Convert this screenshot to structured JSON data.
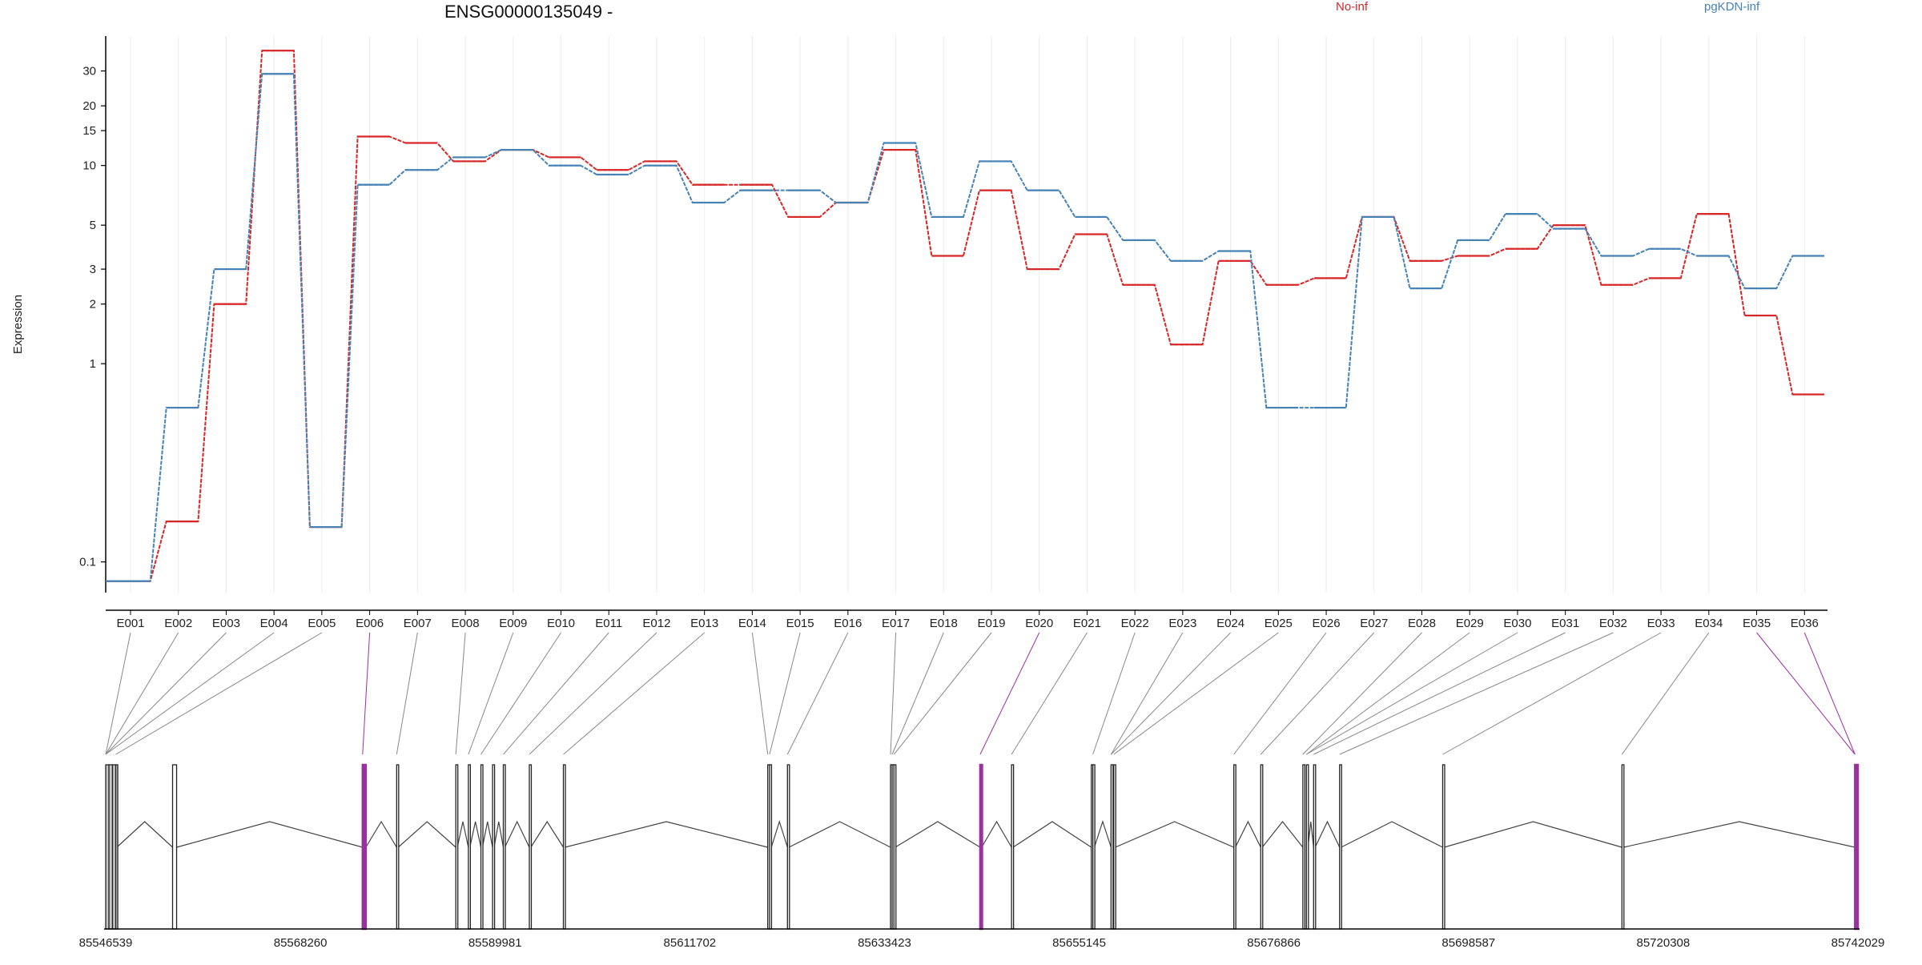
{
  "chart_data": {
    "type": "line",
    "title": "ENSG00000135049 -",
    "xlabel": "",
    "ylabel": "Expression",
    "y_scale": "log",
    "ylim": [
      0.07,
      45
    ],
    "yticks": [
      0.1,
      1,
      2,
      3,
      5,
      10,
      15,
      20,
      30
    ],
    "ytick_labels": [
      "0.1",
      "1",
      "2",
      "3",
      "5",
      "10",
      "15",
      "20",
      "30"
    ],
    "grid": "vertical only",
    "legend_placement": "top",
    "categories": [
      "E001",
      "E002",
      "E003",
      "E004",
      "E005",
      "E006",
      "E007",
      "E008",
      "E009",
      "E010",
      "E011",
      "E012",
      "E013",
      "E014",
      "E015",
      "E016",
      "E017",
      "E018",
      "E019",
      "E020",
      "E021",
      "E022",
      "E023",
      "E024",
      "E025",
      "E026",
      "E027",
      "E028",
      "E029",
      "E030",
      "E031",
      "E032",
      "E033",
      "E034",
      "E035",
      "E036"
    ],
    "series": [
      {
        "name": "No-inf",
        "color": "#d62728",
        "values": [
          0.08,
          0.16,
          2.0,
          38.0,
          0.15,
          14.0,
          13.0,
          10.5,
          12.0,
          11.0,
          9.5,
          10.5,
          8.0,
          8.0,
          5.5,
          6.5,
          12.0,
          3.5,
          7.5,
          3.0,
          4.5,
          2.5,
          1.25,
          3.3,
          2.5,
          2.7,
          5.5,
          3.3,
          3.5,
          3.8,
          5.0,
          2.5,
          2.7,
          5.7,
          1.75,
          0.7
        ]
      },
      {
        "name": "pgKDN-inf",
        "color": "#4682b4",
        "values": [
          0.08,
          0.6,
          3.0,
          29.0,
          0.15,
          8.0,
          9.5,
          11.0,
          12.0,
          10.0,
          9.0,
          10.0,
          6.5,
          7.5,
          7.5,
          6.5,
          13.0,
          5.5,
          10.5,
          7.5,
          5.5,
          4.2,
          3.3,
          3.7,
          0.6,
          0.6,
          5.5,
          2.4,
          4.2,
          5.7,
          4.8,
          3.5,
          3.8,
          3.5,
          2.4,
          3.5
        ]
      }
    ],
    "gene_model": {
      "coordinate_ticks": [
        "85546539",
        "85568260",
        "85589981",
        "85611702",
        "85633423",
        "85655145",
        "85676866",
        "85698587",
        "85720308",
        "85742029"
      ],
      "coord_range": [
        85546539,
        85742029
      ],
      "exons": [
        {
          "start": 85546539,
          "end": 85546900,
          "fill": "#c8c8c8",
          "highlight": false
        },
        {
          "start": 85546900,
          "end": 85547300,
          "fill": "#c8c8c8",
          "highlight": false
        },
        {
          "start": 85547300,
          "end": 85547660,
          "fill": "#c8c8c8",
          "highlight": false
        },
        {
          "start": 85547660,
          "end": 85547780,
          "fill": "#c8c8c8",
          "highlight": false
        },
        {
          "start": 85554000,
          "end": 85554450,
          "fill": "#ffffff",
          "highlight": false
        },
        {
          "start": 85575200,
          "end": 85575560,
          "fill": "#ffffff",
          "highlight": true
        },
        {
          "start": 85579000,
          "end": 85579170,
          "fill": "#ffffff",
          "highlight": false
        },
        {
          "start": 85585600,
          "end": 85585770,
          "fill": "#ffffff",
          "highlight": false
        },
        {
          "start": 85587000,
          "end": 85587170,
          "fill": "#ffffff",
          "highlight": false
        },
        {
          "start": 85588400,
          "end": 85588570,
          "fill": "#ffffff",
          "highlight": false
        },
        {
          "start": 85589700,
          "end": 85589870,
          "fill": "#ffffff",
          "highlight": false
        },
        {
          "start": 85590900,
          "end": 85591070,
          "fill": "#ffffff",
          "highlight": false
        },
        {
          "start": 85593800,
          "end": 85593970,
          "fill": "#ffffff",
          "highlight": false
        },
        {
          "start": 85597600,
          "end": 85597770,
          "fill": "#ffffff",
          "highlight": false
        },
        {
          "start": 85620400,
          "end": 85620600,
          "fill": "#ffffff",
          "highlight": false
        },
        {
          "start": 85620600,
          "end": 85620800,
          "fill": "#ffffff",
          "highlight": false
        },
        {
          "start": 85622600,
          "end": 85622770,
          "fill": "#ffffff",
          "highlight": false
        },
        {
          "start": 85634100,
          "end": 85634280,
          "fill": "#ffffff",
          "highlight": false
        },
        {
          "start": 85634280,
          "end": 85634480,
          "fill": "#ffffff",
          "highlight": false
        },
        {
          "start": 85634480,
          "end": 85634620,
          "fill": "#ffffff",
          "highlight": false
        },
        {
          "start": 85644100,
          "end": 85644270,
          "fill": "#ffffff",
          "highlight": true
        },
        {
          "start": 85647600,
          "end": 85647770,
          "fill": "#ffffff",
          "highlight": false
        },
        {
          "start": 85656500,
          "end": 85656670,
          "fill": "#ffffff",
          "highlight": false
        },
        {
          "start": 85656670,
          "end": 85656840,
          "fill": "#ffffff",
          "highlight": false
        },
        {
          "start": 85658700,
          "end": 85658870,
          "fill": "#ffffff",
          "highlight": false
        },
        {
          "start": 85659000,
          "end": 85659170,
          "fill": "#ffffff",
          "highlight": false
        },
        {
          "start": 85672400,
          "end": 85672570,
          "fill": "#ffffff",
          "highlight": false
        },
        {
          "start": 85675400,
          "end": 85675570,
          "fill": "#ffffff",
          "highlight": false
        },
        {
          "start": 85680100,
          "end": 85680270,
          "fill": "#ffffff",
          "highlight": false
        },
        {
          "start": 85680500,
          "end": 85680670,
          "fill": "#ffffff",
          "highlight": false
        },
        {
          "start": 85681300,
          "end": 85681470,
          "fill": "#ffffff",
          "highlight": false
        },
        {
          "start": 85684200,
          "end": 85684370,
          "fill": "#ffffff",
          "highlight": false
        },
        {
          "start": 85695700,
          "end": 85695870,
          "fill": "#ffffff",
          "highlight": false
        },
        {
          "start": 85715700,
          "end": 85715870,
          "fill": "#ffffff",
          "highlight": false
        },
        {
          "start": 85741700,
          "end": 85742029,
          "fill": "#ffffff",
          "highlight": true
        }
      ]
    }
  }
}
